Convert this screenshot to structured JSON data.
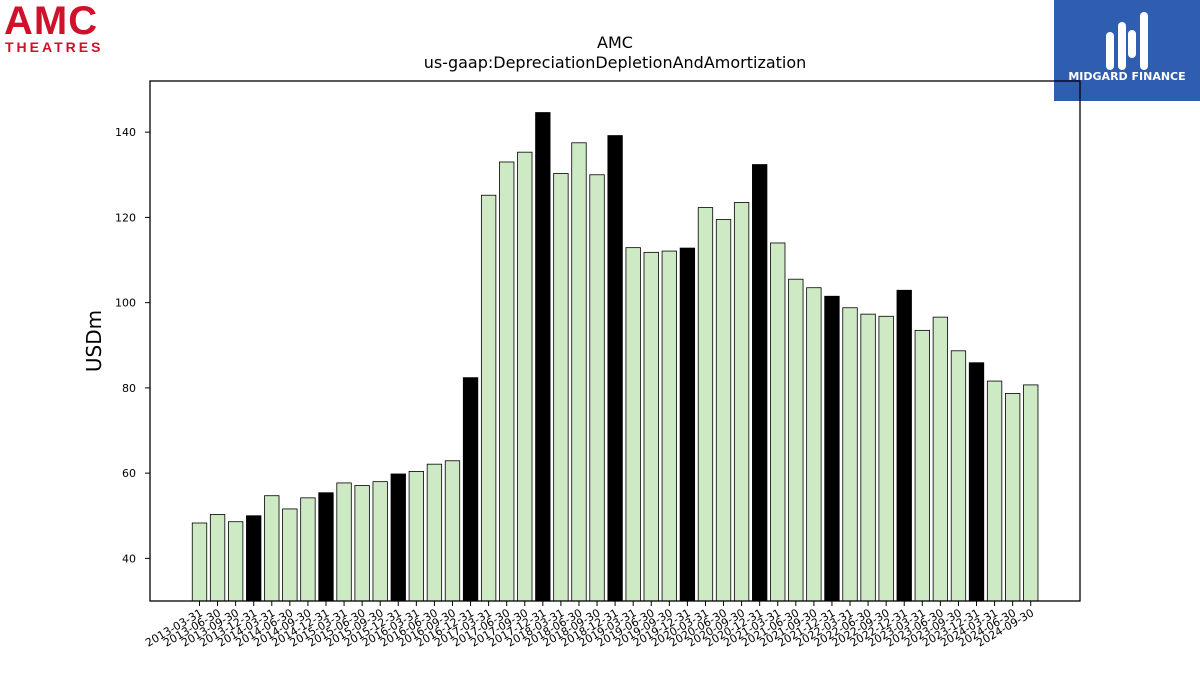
{
  "logos": {
    "left": {
      "line1": "AMC",
      "line2": "THEATRES",
      "color": "#d0112b"
    },
    "right": {
      "text": "MIDGARD FINANCE",
      "bg": "#2f5db0"
    }
  },
  "chart_data": {
    "type": "bar",
    "title": "AMC",
    "subtitle": "us-gaap:DepreciationDepletionAndAmortization",
    "xlabel": "",
    "ylabel": "USDm",
    "ylim": [
      30,
      152
    ],
    "yticks": [
      40,
      60,
      80,
      100,
      120,
      140
    ],
    "grid": false,
    "bar_color": "#cdeac5",
    "highlight_color": "#000000",
    "categories": [
      "2013-03-31",
      "2013-06-30",
      "2013-09-30",
      "2013-12-31",
      "2014-03-31",
      "2014-06-30",
      "2014-09-30",
      "2014-12-31",
      "2015-03-31",
      "2015-06-30",
      "2015-09-30",
      "2015-12-31",
      "2016-03-31",
      "2016-06-30",
      "2016-09-30",
      "2016-12-31",
      "2017-03-31",
      "2017-06-30",
      "2017-09-30",
      "2017-12-31",
      "2018-03-31",
      "2018-06-30",
      "2018-09-30",
      "2018-12-31",
      "2019-03-31",
      "2019-06-30",
      "2019-09-30",
      "2019-12-31",
      "2020-03-31",
      "2020-06-30",
      "2020-09-30",
      "2020-12-31",
      "2021-03-31",
      "2021-06-30",
      "2021-09-30",
      "2021-12-31",
      "2022-03-31",
      "2022-06-30",
      "2022-09-30",
      "2022-12-31",
      "2023-03-31",
      "2023-06-30",
      "2023-09-30",
      "2023-12-31",
      "2024-03-31",
      "2024-06-30",
      "2024-09-30"
    ],
    "values": [
      48.3,
      50.3,
      48.6,
      50.0,
      54.7,
      51.6,
      54.2,
      55.4,
      57.7,
      57.1,
      58.0,
      59.8,
      60.4,
      62.1,
      62.9,
      82.4,
      125.2,
      133.0,
      135.3,
      144.6,
      130.3,
      137.5,
      130.0,
      139.2,
      112.9,
      111.8,
      112.1,
      112.8,
      122.3,
      119.5,
      123.5,
      132.4,
      114.0,
      105.5,
      103.5,
      101.5,
      98.8,
      97.3,
      96.8,
      102.9,
      93.5,
      96.6,
      88.7,
      85.9,
      81.6,
      78.7,
      80.7
    ],
    "highlight": [
      3,
      7,
      11,
      15,
      19,
      23,
      27,
      31,
      35,
      39,
      43
    ]
  }
}
